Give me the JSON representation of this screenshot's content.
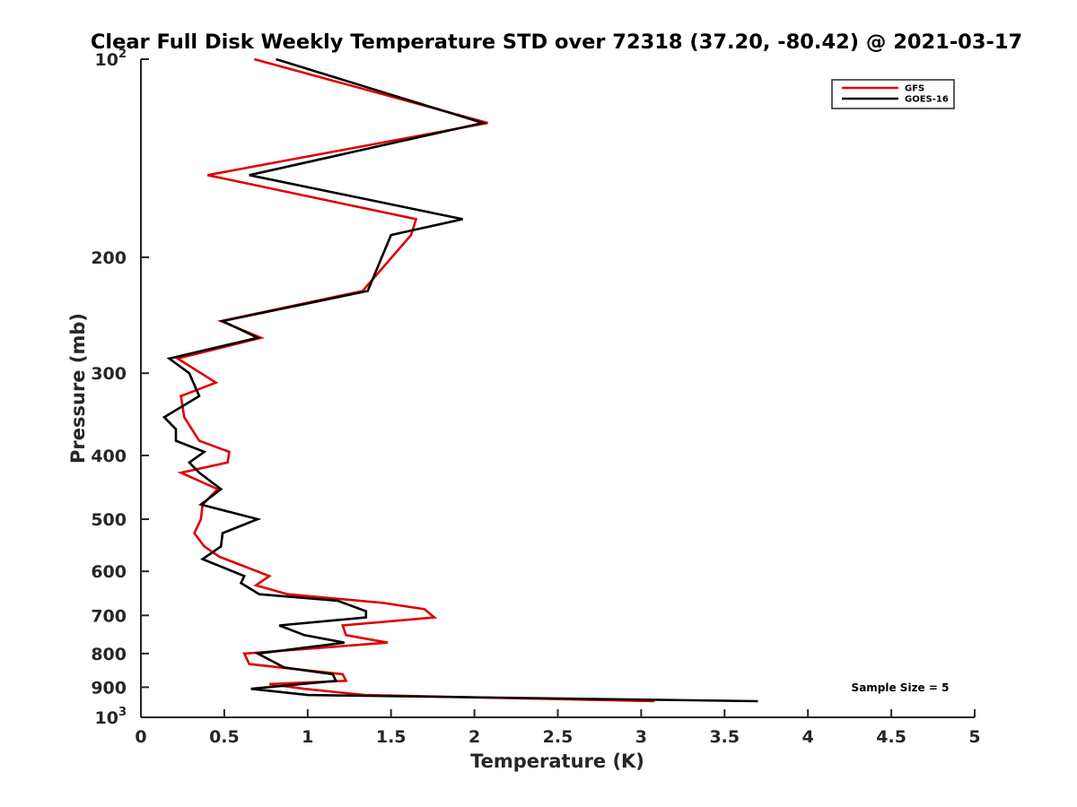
{
  "chart_data": {
    "type": "line",
    "title": "Clear Full Disk Weekly Temperature STD over 72318 (37.20, -80.42) @ 2021-03-17",
    "xlabel": "Temperature (K)",
    "ylabel": "Pressure (mb)",
    "xlim": [
      0,
      5
    ],
    "ylim": [
      100,
      1000
    ],
    "y_scale": "log",
    "y_reversed": true,
    "grid": false,
    "legend_position": "top-right",
    "x_ticks": [
      "0",
      "0.5",
      "1",
      "1.5",
      "2",
      "2.5",
      "3",
      "3.5",
      "4",
      "4.5",
      "5"
    ],
    "y_ticks": [
      {
        "value": 100,
        "label": "10",
        "sup": "2"
      },
      {
        "value": 200,
        "label": "200",
        "sup": ""
      },
      {
        "value": 300,
        "label": "300",
        "sup": ""
      },
      {
        "value": 400,
        "label": "400",
        "sup": ""
      },
      {
        "value": 500,
        "label": "500",
        "sup": ""
      },
      {
        "value": 600,
        "label": "600",
        "sup": ""
      },
      {
        "value": 700,
        "label": "700",
        "sup": ""
      },
      {
        "value": 800,
        "label": "800",
        "sup": ""
      },
      {
        "value": 900,
        "label": "900",
        "sup": ""
      },
      {
        "value": 1000,
        "label": "10",
        "sup": "3"
      }
    ],
    "annotation": "Sample Size = 5",
    "series": [
      {
        "name": "GFS",
        "color": "#e00000",
        "points": [
          [
            0.68,
            100
          ],
          [
            2.08,
            125
          ],
          [
            0.4,
            150
          ],
          [
            1.65,
            175
          ],
          [
            1.62,
            185
          ],
          [
            1.33,
            225
          ],
          [
            0.48,
            250
          ],
          [
            0.72,
            265
          ],
          [
            0.22,
            285
          ],
          [
            0.45,
            310
          ],
          [
            0.24,
            325
          ],
          [
            0.26,
            350
          ],
          [
            0.35,
            380
          ],
          [
            0.53,
            395
          ],
          [
            0.52,
            410
          ],
          [
            0.24,
            425
          ],
          [
            0.46,
            450
          ],
          [
            0.37,
            475
          ],
          [
            0.36,
            500
          ],
          [
            0.32,
            525
          ],
          [
            0.38,
            550
          ],
          [
            0.47,
            570
          ],
          [
            0.77,
            610
          ],
          [
            0.69,
            630
          ],
          [
            0.88,
            650
          ],
          [
            1.45,
            670
          ],
          [
            1.7,
            685
          ],
          [
            1.76,
            705
          ],
          [
            1.21,
            725
          ],
          [
            1.23,
            750
          ],
          [
            1.48,
            770
          ],
          [
            0.62,
            800
          ],
          [
            0.65,
            830
          ],
          [
            1.21,
            860
          ],
          [
            1.23,
            880
          ],
          [
            0.77,
            890
          ],
          [
            0.98,
            905
          ],
          [
            1.34,
            925
          ],
          [
            3.08,
            945
          ]
        ]
      },
      {
        "name": "GOES-16",
        "color": "#000000",
        "points": [
          [
            0.81,
            100
          ],
          [
            2.05,
            125
          ],
          [
            0.65,
            150
          ],
          [
            1.93,
            175
          ],
          [
            1.5,
            185
          ],
          [
            1.36,
            225
          ],
          [
            0.49,
            250
          ],
          [
            0.7,
            265
          ],
          [
            0.17,
            285
          ],
          [
            0.29,
            300
          ],
          [
            0.35,
            325
          ],
          [
            0.14,
            350
          ],
          [
            0.21,
            365
          ],
          [
            0.21,
            380
          ],
          [
            0.38,
            395
          ],
          [
            0.29,
            410
          ],
          [
            0.35,
            425
          ],
          [
            0.48,
            450
          ],
          [
            0.36,
            475
          ],
          [
            0.7,
            500
          ],
          [
            0.49,
            525
          ],
          [
            0.48,
            550
          ],
          [
            0.37,
            575
          ],
          [
            0.62,
            610
          ],
          [
            0.6,
            625
          ],
          [
            0.71,
            650
          ],
          [
            1.18,
            665
          ],
          [
            1.35,
            690
          ],
          [
            1.35,
            705
          ],
          [
            0.83,
            725
          ],
          [
            0.98,
            750
          ],
          [
            1.22,
            770
          ],
          [
            0.7,
            800
          ],
          [
            0.86,
            840
          ],
          [
            1.15,
            860
          ],
          [
            1.17,
            880
          ],
          [
            0.66,
            905
          ],
          [
            1.0,
            925
          ],
          [
            3.7,
            945
          ]
        ]
      }
    ]
  }
}
